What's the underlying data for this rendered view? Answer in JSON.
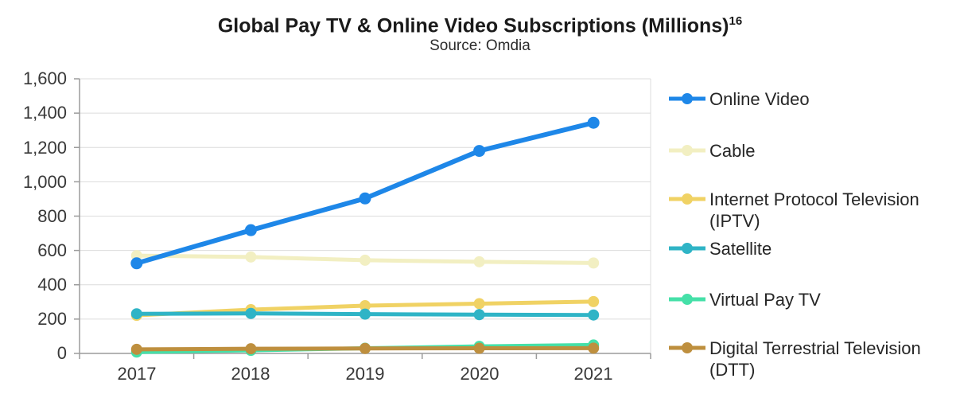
{
  "chart_data": {
    "type": "line",
    "title": "Global Pay TV & Online Video Subscriptions (Millions)",
    "title_superscript": "16",
    "subtitle": "Source: Omdia",
    "categories": [
      "2017",
      "2018",
      "2019",
      "2020",
      "2021"
    ],
    "y_axis": {
      "min": 0,
      "max": 1600,
      "step": 200,
      "tick_labels": [
        "0",
        "200",
        "400",
        "600",
        "800",
        "1,000",
        "1,200",
        "1,400",
        "1,600"
      ]
    },
    "grid": true,
    "legend_position": "right",
    "colors": {
      "grid": "#DCDCDC",
      "axis": "#9C9C9C",
      "background": "#FFFFFF"
    },
    "series": [
      {
        "name": "Online Video",
        "color": "#1E87E8",
        "values": [
          525,
          718,
          903,
          1180,
          1344
        ],
        "legend_lines": [
          "Online Video"
        ]
      },
      {
        "name": "Cable",
        "color": "#F2EFC2",
        "values": [
          570,
          562,
          543,
          534,
          527
        ],
        "legend_lines": [
          "Cable"
        ]
      },
      {
        "name": "Internet Protocol Television (IPTV)",
        "color": "#F0D264",
        "values": [
          222,
          255,
          278,
          290,
          302
        ],
        "legend_lines": [
          "Internet Protocol Television",
          "(IPTV)"
        ]
      },
      {
        "name": "Satellite",
        "color": "#2FB4C6",
        "values": [
          231,
          233,
          229,
          226,
          224
        ],
        "legend_lines": [
          "Satellite"
        ]
      },
      {
        "name": "Virtual Pay TV",
        "color": "#45E0A8",
        "values": [
          8,
          18,
          30,
          41,
          49
        ],
        "legend_lines": [
          "Virtual Pay TV"
        ]
      },
      {
        "name": "Digital Terrestrial Television (DTT)",
        "color": "#BE8F3E",
        "values": [
          24,
          27,
          29,
          30,
          31
        ],
        "legend_lines": [
          "Digital Terrestrial Television",
          "(DTT)"
        ]
      }
    ]
  }
}
